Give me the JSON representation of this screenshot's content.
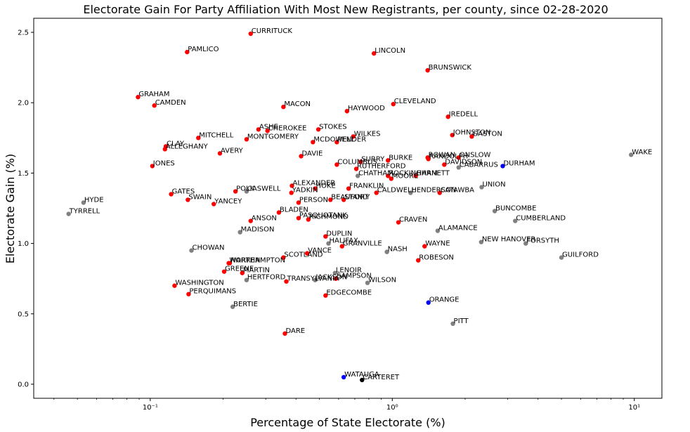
{
  "colors": {
    "Republican": "#ff0000",
    "Democrat": "#0000ff",
    "Unaffiliated": "#808080",
    "Libertarian": "#000000"
  },
  "chart_data": {
    "type": "scatter",
    "title": "Electorate Gain For Party Affiliation With Most New Registrants, per county, since 02-28-2020",
    "xlabel": "Percentage of State Electorate (%)",
    "ylabel": "Electorate Gain (%)",
    "xscale": "log",
    "xlim": [
      0.033,
      13.0
    ],
    "ylim": [
      -0.1,
      2.6
    ],
    "xticks": [
      {
        "value": 0.1,
        "label": "10⁻¹"
      },
      {
        "value": 1,
        "label": "10⁰"
      },
      {
        "value": 10,
        "label": "10¹"
      }
    ],
    "yticks": [
      {
        "value": 0.0,
        "label": "0.0"
      },
      {
        "value": 0.5,
        "label": "0.5"
      },
      {
        "value": 1.0,
        "label": "1.0"
      },
      {
        "value": 1.5,
        "label": "1.5"
      },
      {
        "value": 2.0,
        "label": "2.0"
      },
      {
        "value": 2.5,
        "label": "2.5"
      }
    ],
    "grid": false,
    "points": [
      {
        "label": "CURRITUCK",
        "x": 0.26,
        "y": 2.49,
        "color": "#ff0000"
      },
      {
        "label": "PAMLICO",
        "x": 0.142,
        "y": 2.36,
        "color": "#ff0000"
      },
      {
        "label": "LINCOLN",
        "x": 0.84,
        "y": 2.35,
        "color": "#ff0000"
      },
      {
        "label": "BRUNSWICK",
        "x": 1.4,
        "y": 2.23,
        "color": "#ff0000"
      },
      {
        "label": "GRAHAM",
        "x": 0.089,
        "y": 2.04,
        "color": "#ff0000"
      },
      {
        "label": "CAMDEN",
        "x": 0.104,
        "y": 1.98,
        "color": "#ff0000"
      },
      {
        "label": "MACON",
        "x": 0.355,
        "y": 1.97,
        "color": "#ff0000"
      },
      {
        "label": "CLEVELAND",
        "x": 1.01,
        "y": 1.99,
        "color": "#ff0000"
      },
      {
        "label": "HAYWOOD",
        "x": 0.65,
        "y": 1.94,
        "color": "#ff0000"
      },
      {
        "label": "IREDELL",
        "x": 1.7,
        "y": 1.9,
        "color": "#ff0000"
      },
      {
        "label": "ASHE",
        "x": 0.28,
        "y": 1.81,
        "color": "#ff0000"
      },
      {
        "label": "CHEROKEE",
        "x": 0.305,
        "y": 1.8,
        "color": "#ff0000"
      },
      {
        "label": "STOKES",
        "x": 0.495,
        "y": 1.81,
        "color": "#ff0000"
      },
      {
        "label": "MITCHELL",
        "x": 0.158,
        "y": 1.75,
        "color": "#ff0000"
      },
      {
        "label": "MONTGOMERY",
        "x": 0.25,
        "y": 1.74,
        "color": "#ff0000"
      },
      {
        "label": "MCDOWELL",
        "x": 0.47,
        "y": 1.72,
        "color": "#ff0000"
      },
      {
        "label": "PENDER",
        "x": 0.59,
        "y": 1.72,
        "color": "#ff0000"
      },
      {
        "label": "WILKES",
        "x": 0.69,
        "y": 1.76,
        "color": "#ff0000"
      },
      {
        "label": "JOHNSTON",
        "x": 1.77,
        "y": 1.77,
        "color": "#ff0000"
      },
      {
        "label": "GASTON",
        "x": 2.13,
        "y": 1.76,
        "color": "#ff0000"
      },
      {
        "label": "CLAY",
        "x": 0.116,
        "y": 1.69,
        "color": "#ff0000"
      },
      {
        "label": "ALLEGHANY",
        "x": 0.115,
        "y": 1.67,
        "color": "#ff0000"
      },
      {
        "label": "AVERY",
        "x": 0.194,
        "y": 1.64,
        "color": "#ff0000"
      },
      {
        "label": "DAVIE",
        "x": 0.42,
        "y": 1.62,
        "color": "#ff0000"
      },
      {
        "label": "SURRY",
        "x": 0.74,
        "y": 1.58,
        "color": "#ff0000"
      },
      {
        "label": "BURKE",
        "x": 0.96,
        "y": 1.59,
        "color": "#ff0000"
      },
      {
        "label": "RANDOLPH",
        "x": 1.41,
        "y": 1.6,
        "color": "#ff0000"
      },
      {
        "label": "ROWAN",
        "x": 1.4,
        "y": 1.61,
        "color": "#ff0000"
      },
      {
        "label": "ONSLOW",
        "x": 1.88,
        "y": 1.61,
        "color": "#ff0000"
      },
      {
        "label": "WAKE",
        "x": 9.7,
        "y": 1.63,
        "color": "#808080"
      },
      {
        "label": "JONES",
        "x": 0.102,
        "y": 1.55,
        "color": "#ff0000"
      },
      {
        "label": "COLUMBUS",
        "x": 0.59,
        "y": 1.56,
        "color": "#ff0000"
      },
      {
        "label": "DAVIDSON",
        "x": 1.64,
        "y": 1.56,
        "color": "#ff0000"
      },
      {
        "label": "CABARRUS",
        "x": 1.88,
        "y": 1.54,
        "color": "#808080"
      },
      {
        "label": "DURHAM",
        "x": 2.86,
        "y": 1.55,
        "color": "#0000ff"
      },
      {
        "label": "RUTHERFORD",
        "x": 0.71,
        "y": 1.53,
        "color": "#ff0000"
      },
      {
        "label": "CHATHAM",
        "x": 0.72,
        "y": 1.48,
        "color": "#808080"
      },
      {
        "label": "ROCKINGHAM",
        "x": 0.96,
        "y": 1.48,
        "color": "#ff0000"
      },
      {
        "label": "HARNETT",
        "x": 1.25,
        "y": 1.48,
        "color": "#ff0000"
      },
      {
        "label": "MOORE",
        "x": 0.99,
        "y": 1.46,
        "color": "#ff0000"
      },
      {
        "label": "ALEXANDER",
        "x": 0.385,
        "y": 1.41,
        "color": "#ff0000"
      },
      {
        "label": "POLK",
        "x": 0.225,
        "y": 1.37,
        "color": "#ff0000"
      },
      {
        "label": "CASWELL",
        "x": 0.25,
        "y": 1.37,
        "color": "#808080"
      },
      {
        "label": "HOKE",
        "x": 0.48,
        "y": 1.39,
        "color": "#ff0000"
      },
      {
        "label": "FRANKLIN",
        "x": 0.66,
        "y": 1.39,
        "color": "#ff0000"
      },
      {
        "label": "UNION",
        "x": 2.34,
        "y": 1.4,
        "color": "#808080"
      },
      {
        "label": "GATES",
        "x": 0.122,
        "y": 1.35,
        "color": "#ff0000"
      },
      {
        "label": "YADKIN",
        "x": 0.383,
        "y": 1.36,
        "color": "#ff0000"
      },
      {
        "label": "CALDWELL",
        "x": 0.86,
        "y": 1.36,
        "color": "#ff0000"
      },
      {
        "label": "HENDERSON",
        "x": 1.19,
        "y": 1.36,
        "color": "#808080"
      },
      {
        "label": "CATAWBA",
        "x": 1.57,
        "y": 1.36,
        "color": "#ff0000"
      },
      {
        "label": "BEAUFORT",
        "x": 0.555,
        "y": 1.31,
        "color": "#ff0000"
      },
      {
        "label": "STANLY",
        "x": 0.63,
        "y": 1.31,
        "color": "#ff0000"
      },
      {
        "label": "SWAIN",
        "x": 0.143,
        "y": 1.31,
        "color": "#ff0000"
      },
      {
        "label": "YANCEY",
        "x": 0.183,
        "y": 1.28,
        "color": "#ff0000"
      },
      {
        "label": "PERSON",
        "x": 0.41,
        "y": 1.29,
        "color": "#ff0000"
      },
      {
        "label": "HYDE",
        "x": 0.053,
        "y": 1.29,
        "color": "#808080"
      },
      {
        "label": "TYRRELL",
        "x": 0.046,
        "y": 1.21,
        "color": "#808080"
      },
      {
        "label": "BUNCOMBE",
        "x": 2.65,
        "y": 1.23,
        "color": "#808080"
      },
      {
        "label": "BLADEN",
        "x": 0.34,
        "y": 1.22,
        "color": "#ff0000"
      },
      {
        "label": "PASQUOTANK",
        "x": 0.41,
        "y": 1.18,
        "color": "#ff0000"
      },
      {
        "label": "RICHMOND",
        "x": 0.45,
        "y": 1.17,
        "color": "#ff0000"
      },
      {
        "label": "ANSON",
        "x": 0.26,
        "y": 1.16,
        "color": "#ff0000"
      },
      {
        "label": "CRAVEN",
        "x": 1.06,
        "y": 1.15,
        "color": "#ff0000"
      },
      {
        "label": "CUMBERLAND",
        "x": 3.22,
        "y": 1.16,
        "color": "#808080"
      },
      {
        "label": "MADISON",
        "x": 0.235,
        "y": 1.08,
        "color": "#808080"
      },
      {
        "label": "ALAMANCE",
        "x": 1.54,
        "y": 1.09,
        "color": "#808080"
      },
      {
        "label": "DUPLIN",
        "x": 0.53,
        "y": 1.05,
        "color": "#ff0000"
      },
      {
        "label": "NEW HANOVER",
        "x": 2.33,
        "y": 1.01,
        "color": "#808080"
      },
      {
        "label": "FORSYTH",
        "x": 3.56,
        "y": 1.0,
        "color": "#808080"
      },
      {
        "label": "HALIFAX",
        "x": 0.545,
        "y": 1.0,
        "color": "#808080"
      },
      {
        "label": "GRANVILLE",
        "x": 0.62,
        "y": 0.98,
        "color": "#ff0000"
      },
      {
        "label": "WAYNE",
        "x": 1.36,
        "y": 0.98,
        "color": "#ff0000"
      },
      {
        "label": "CHOWAN",
        "x": 0.148,
        "y": 0.95,
        "color": "#808080"
      },
      {
        "label": "NASH",
        "x": 0.95,
        "y": 0.94,
        "color": "#808080"
      },
      {
        "label": "VANCE",
        "x": 0.445,
        "y": 0.93,
        "color": "#ff0000"
      },
      {
        "label": "SCOTLAND",
        "x": 0.355,
        "y": 0.9,
        "color": "#ff0000"
      },
      {
        "label": "GUILFORD",
        "x": 5.0,
        "y": 0.9,
        "color": "#808080"
      },
      {
        "label": "ROBESON",
        "x": 1.28,
        "y": 0.88,
        "color": "#ff0000"
      },
      {
        "label": "NORTHAMPTON",
        "x": 0.213,
        "y": 0.86,
        "color": "#ff0000"
      },
      {
        "label": "WARREN",
        "x": 0.211,
        "y": 0.86,
        "color": "#ff0000"
      },
      {
        "label": "GREENE",
        "x": 0.202,
        "y": 0.8,
        "color": "#ff0000"
      },
      {
        "label": "MARTIN",
        "x": 0.24,
        "y": 0.79,
        "color": "#ff0000"
      },
      {
        "label": "LENOIR",
        "x": 0.58,
        "y": 0.79,
        "color": "#808080"
      },
      {
        "label": "HERTFORD",
        "x": 0.25,
        "y": 0.74,
        "color": "#808080"
      },
      {
        "label": "TRANSYLVANIA",
        "x": 0.365,
        "y": 0.73,
        "color": "#ff0000"
      },
      {
        "label": "JACKSON",
        "x": 0.48,
        "y": 0.74,
        "color": "#808080"
      },
      {
        "label": "SAMPSON",
        "x": 0.585,
        "y": 0.75,
        "color": "#ff0000"
      },
      {
        "label": "WILSON",
        "x": 0.79,
        "y": 0.72,
        "color": "#808080"
      },
      {
        "label": "WASHINGTON",
        "x": 0.126,
        "y": 0.7,
        "color": "#ff0000"
      },
      {
        "label": "PERQUIMANS",
        "x": 0.144,
        "y": 0.64,
        "color": "#ff0000"
      },
      {
        "label": "EDGECOMBE",
        "x": 0.53,
        "y": 0.63,
        "color": "#ff0000"
      },
      {
        "label": "ORANGE",
        "x": 1.41,
        "y": 0.58,
        "color": "#0000ff"
      },
      {
        "label": "BERTIE",
        "x": 0.219,
        "y": 0.55,
        "color": "#808080"
      },
      {
        "label": "PITT",
        "x": 1.78,
        "y": 0.43,
        "color": "#808080"
      },
      {
        "label": "DARE",
        "x": 0.36,
        "y": 0.36,
        "color": "#ff0000"
      },
      {
        "label": "WATAUGA",
        "x": 0.63,
        "y": 0.05,
        "color": "#0000ff"
      },
      {
        "label": "CARTERET",
        "x": 0.75,
        "y": 0.03,
        "color": "#000000"
      }
    ]
  }
}
